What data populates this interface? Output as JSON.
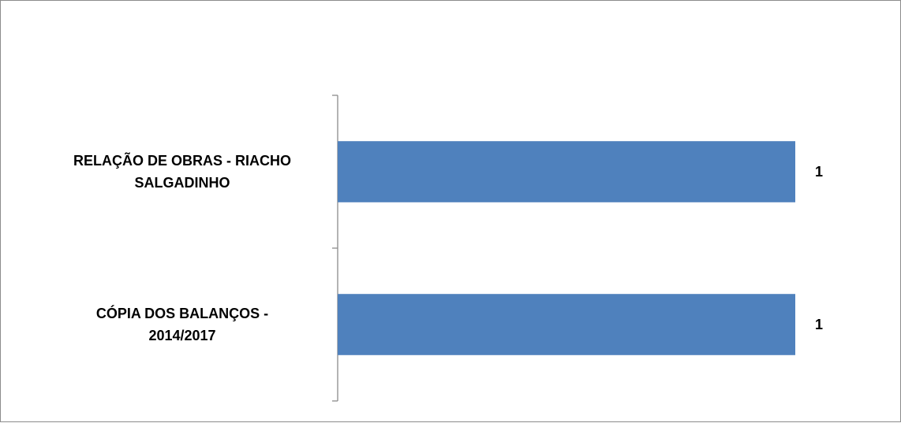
{
  "chart_data": {
    "type": "bar",
    "orientation": "horizontal",
    "categories": [
      [
        "RELAÇÃO DE OBRAS - RIACHO",
        "SALGADINHO"
      ],
      [
        "CÓPIA DOS BALANÇOS -",
        "2014/2017"
      ]
    ],
    "values": [
      1,
      1
    ],
    "value_labels": [
      "1",
      "1"
    ],
    "title": "",
    "xlabel": "",
    "ylabel": "",
    "xlim": [
      0,
      1
    ],
    "grid": false,
    "legend": "none",
    "colors": {
      "bar": "#4f81bd",
      "axis": "#8c8c8c",
      "text": "#000000"
    }
  }
}
